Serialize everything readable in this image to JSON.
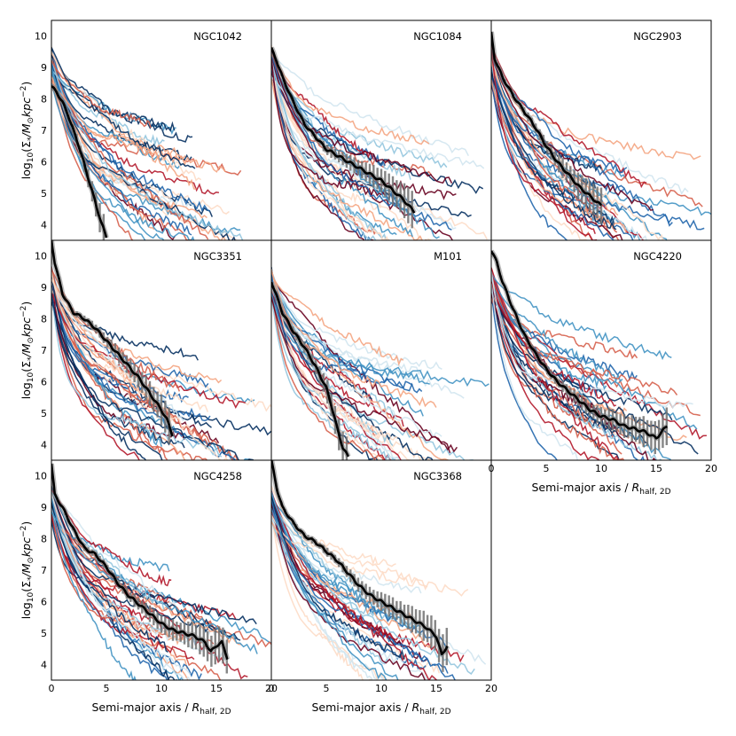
{
  "chart_data": {
    "type": "line",
    "layout": "3x3 grid, 8 panels, shared axes",
    "xlabel": "Semi-major axis / R_half,2D",
    "xlabel_parts": {
      "main": "Semi-major axis / ",
      "sym": "R",
      "sub": "half, 2D"
    },
    "ylabel": "log10(Σ*/M⊙ kpc^-2)",
    "ylabel_parts": {
      "a": "log",
      "a_sub": "10",
      "b": "(Σ",
      "b_sub": "*",
      "c": "/M",
      "c_sub": "⊙",
      "d": "kpc",
      "d_sup": "−2",
      "e": ")"
    },
    "xlim": [
      0,
      20
    ],
    "ylim": [
      3.5,
      10.5
    ],
    "x_ticks": [
      0,
      5,
      10,
      15,
      20
    ],
    "x_tick_labels": [
      "0",
      "5",
      "10",
      "15",
      "20"
    ],
    "y_ticks": [
      4,
      5,
      6,
      7,
      8,
      9,
      10
    ],
    "y_tick_labels": [
      "4",
      "5",
      "6",
      "7",
      "8",
      "9",
      "10"
    ],
    "background_palette": [
      "#67001f",
      "#b2182b",
      "#d6604d",
      "#f4a582",
      "#fddbc7",
      "#d1e5f0",
      "#92c5de",
      "#4393c3",
      "#2166ac",
      "#053061"
    ],
    "observed_color": "#000000",
    "error_color": "#707070",
    "panels": [
      {
        "name": "NGC1042",
        "seed": 11,
        "observed": {
          "x": [
            0,
            0.5,
            1,
            1.5,
            2,
            2.5,
            3,
            3.5,
            4,
            4.5,
            5
          ],
          "y": [
            8.4,
            8.2,
            7.9,
            7.5,
            7.0,
            6.5,
            5.9,
            5.3,
            4.7,
            4.1,
            3.6
          ]
        }
      },
      {
        "name": "NGC1084",
        "seed": 22,
        "observed": {
          "x": [
            0,
            0.5,
            1,
            2,
            3,
            4,
            5,
            6,
            7,
            8,
            9,
            10,
            11,
            12,
            13
          ],
          "y": [
            9.6,
            9.2,
            8.7,
            7.9,
            7.2,
            6.8,
            6.4,
            6.2,
            6.0,
            5.8,
            5.6,
            5.4,
            5.1,
            4.8,
            4.4
          ]
        }
      },
      {
        "name": "NGC2903",
        "seed": 33,
        "observed": {
          "x": [
            0,
            0.3,
            1,
            2,
            3,
            4,
            5,
            6,
            7,
            8,
            9,
            10
          ],
          "y": [
            10.1,
            9.3,
            8.7,
            8.1,
            7.6,
            7.1,
            6.5,
            6.0,
            5.6,
            5.2,
            4.9,
            4.6
          ]
        }
      },
      {
        "name": "NGC3351",
        "seed": 44,
        "observed": {
          "x": [
            0,
            0.3,
            1,
            2,
            3,
            4,
            5,
            6,
            7,
            8,
            9,
            10,
            10.5,
            11
          ],
          "y": [
            10.5,
            9.8,
            8.8,
            8.2,
            8.0,
            7.7,
            7.3,
            6.9,
            6.5,
            6.1,
            5.6,
            5.1,
            4.8,
            4.3
          ]
        }
      },
      {
        "name": "M101",
        "seed": 55,
        "observed": {
          "x": [
            0,
            0.5,
            1,
            2,
            3,
            4,
            5,
            5.5,
            6,
            6.5,
            7
          ],
          "y": [
            9.2,
            8.7,
            8.2,
            7.6,
            7.1,
            6.5,
            5.8,
            5.2,
            4.5,
            3.9,
            3.6
          ]
        }
      },
      {
        "name": "NGC4220",
        "seed": 66,
        "observed": {
          "x": [
            0,
            0.5,
            1,
            2,
            3,
            4,
            5,
            6,
            7,
            8,
            9,
            10,
            11,
            12,
            13,
            14,
            15,
            16
          ],
          "y": [
            10.2,
            9.8,
            9.2,
            8.3,
            7.5,
            6.9,
            6.4,
            6.0,
            5.7,
            5.4,
            5.1,
            4.9,
            4.8,
            4.6,
            4.5,
            4.4,
            4.2,
            4.6
          ]
        }
      },
      {
        "name": "NGC4258",
        "seed": 77,
        "observed": {
          "x": [
            0,
            0.3,
            1,
            2,
            3,
            4,
            5,
            6,
            7,
            8,
            9,
            10,
            11,
            12,
            13,
            14,
            14.5,
            15,
            15.5,
            16
          ],
          "y": [
            10.4,
            9.4,
            9.0,
            8.3,
            7.7,
            7.5,
            7.1,
            6.6,
            6.2,
            5.9,
            5.6,
            5.3,
            5.1,
            5.0,
            4.9,
            4.7,
            4.4,
            4.6,
            4.7,
            4.2
          ]
        }
      },
      {
        "name": "NGC3368",
        "seed": 88,
        "observed": {
          "x": [
            0,
            0.5,
            1,
            2,
            3,
            4,
            5,
            6,
            7,
            8,
            9,
            10,
            11,
            12,
            13,
            14,
            15,
            15.5,
            16
          ],
          "y": [
            10.5,
            9.6,
            9.0,
            8.5,
            8.1,
            7.9,
            7.6,
            7.3,
            6.9,
            6.5,
            6.2,
            6.0,
            5.8,
            5.6,
            5.4,
            5.2,
            4.9,
            4.3,
            4.6
          ]
        }
      }
    ]
  }
}
